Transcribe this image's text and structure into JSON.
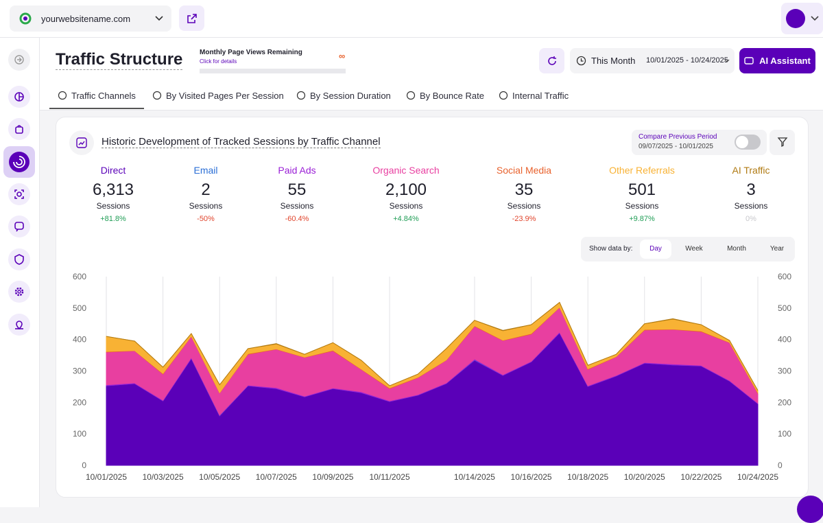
{
  "topbar": {
    "site": "yourwebsitename.com"
  },
  "header": {
    "title": "Traffic Structure",
    "quota_label": "Monthly Page Views Remaining",
    "quota_link": "Click for details",
    "quota_value": "∞",
    "date_preset": "This Month",
    "date_range": "10/01/2025 - 10/24/2025",
    "assistant": "AI Assistant"
  },
  "tabs": [
    "Traffic Channels",
    "By Visited Pages Per Session",
    "By Session Duration",
    "By Bounce Rate",
    "Internal Traffic"
  ],
  "card": {
    "title": "Historic Development of Tracked Sessions by Traffic Channel",
    "compare_label": "Compare Previous Period",
    "compare_range": "09/07/2025 - 10/01/2025",
    "unit": "Sessions",
    "show_by_label": "Show data by:",
    "periods": [
      "Day",
      "Week",
      "Month",
      "Year"
    ]
  },
  "chart_data": {
    "type": "area",
    "stacked": true,
    "grid": true,
    "categories": [
      "10/01/2025",
      null,
      "10/03/2025",
      null,
      "10/05/2025",
      null,
      "10/07/2025",
      null,
      "10/09/2025",
      null,
      "10/11/2025",
      null,
      null,
      "10/14/2025",
      null,
      "10/16/2025",
      null,
      "10/18/2025",
      null,
      "10/20/2025",
      null,
      "10/22/2025",
      null,
      "10/24/2025"
    ],
    "ylim": [
      0,
      600
    ],
    "yticks": [
      0,
      100,
      200,
      300,
      400,
      500,
      600
    ],
    "y2lim": [
      0,
      600
    ],
    "y2ticks": [
      0,
      100,
      200,
      300,
      400,
      500,
      600
    ],
    "series": [
      {
        "name": "Direct",
        "color": "#5a00b8",
        "total": "6,313",
        "change": "+81.8%",
        "values": [
          253,
          260,
          205,
          340,
          157,
          253,
          244,
          218,
          244,
          231,
          203,
          223,
          260,
          334,
          286,
          329,
          421,
          251,
          284,
          325,
          319,
          316,
          268,
          196
        ]
      },
      {
        "name": "Email",
        "color": "#2b6fd6",
        "total": "2",
        "change": "-50%",
        "values": [
          0,
          0,
          0,
          0,
          1,
          0,
          0,
          0,
          0,
          0,
          0,
          0,
          0,
          1,
          0,
          0,
          0,
          0,
          0,
          0,
          0,
          0,
          0,
          0
        ]
      },
      {
        "name": "Paid Ads",
        "color": "#9a1fd6",
        "total": "55",
        "change": "-60.4%",
        "values": [
          3,
          2,
          2,
          3,
          2,
          2,
          3,
          2,
          2,
          3,
          2,
          2,
          2,
          3,
          2,
          2,
          3,
          2,
          2,
          2,
          3,
          2,
          2,
          2
        ]
      },
      {
        "name": "Organic Search",
        "color": "#e83fa0",
        "total": "2,100",
        "change": "+4.84%",
        "values": [
          104,
          102,
          83,
          67,
          70,
          98,
          122,
          123,
          118,
          71,
          39,
          54,
          72,
          104,
          109,
          86,
          78,
          52,
          59,
          103,
          110,
          107,
          120,
          31
        ]
      },
      {
        "name": "Social Media",
        "color": "#e8612c",
        "total": "35",
        "change": "-23.9%",
        "values": [
          2,
          1,
          2,
          1,
          1,
          2,
          1,
          1,
          2,
          1,
          2,
          1,
          1,
          2,
          1,
          2,
          1,
          2,
          1,
          2,
          1,
          2,
          1,
          2
        ]
      },
      {
        "name": "Other Referrals",
        "color": "#f8b234",
        "total": "501",
        "change": "+9.87%",
        "values": [
          48,
          30,
          20,
          8,
          25,
          16,
          16,
          9,
          24,
          28,
          7,
          10,
          36,
          17,
          30,
          28,
          15,
          11,
          7,
          18,
          32,
          20,
          6,
          7
        ]
      },
      {
        "name": "AI Traffic",
        "color": "#b07a12",
        "total": "3",
        "change": "0%",
        "values": [
          0,
          0,
          0,
          0,
          0,
          0,
          1,
          0,
          0,
          0,
          0,
          0,
          0,
          0,
          1,
          0,
          0,
          0,
          0,
          0,
          1,
          0,
          0,
          0
        ]
      }
    ]
  }
}
